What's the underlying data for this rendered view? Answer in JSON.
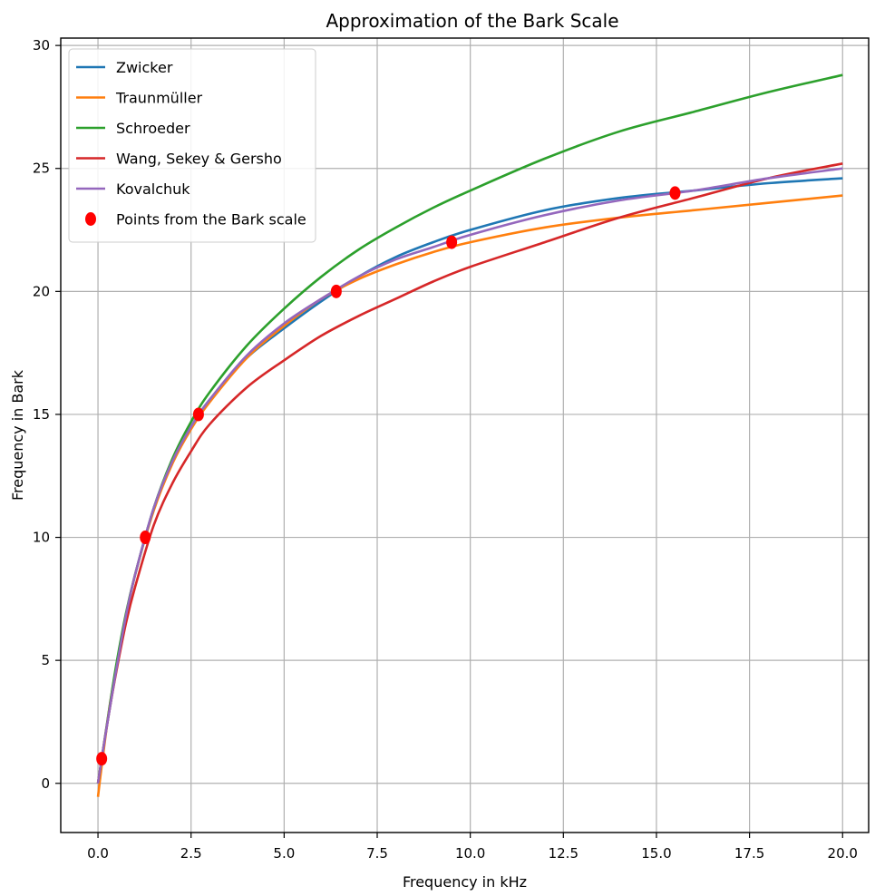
{
  "chart_data": {
    "type": "line",
    "title": "Approximation of the Bark Scale",
    "xlabel": "Frequency in kHz",
    "ylabel": "Frequency in Bark",
    "xlim": [
      -1.0,
      20.7
    ],
    "ylim": [
      -2.0,
      30.3
    ],
    "xticks": [
      0.0,
      2.5,
      5.0,
      7.5,
      10.0,
      12.5,
      15.0,
      17.5,
      20.0
    ],
    "xtick_labels": [
      "0.0",
      "2.5",
      "5.0",
      "7.5",
      "10.0",
      "12.5",
      "15.0",
      "17.5",
      "20.0"
    ],
    "yticks": [
      0,
      5,
      10,
      15,
      20,
      25,
      30
    ],
    "ytick_labels": [
      "0",
      "5",
      "10",
      "15",
      "20",
      "25",
      "30"
    ],
    "grid": true,
    "legend_position": "top-left",
    "series": [
      {
        "name": "Zwicker",
        "color": "#1f77b4",
        "kind": "line",
        "x": [
          0.0,
          0.1,
          0.3,
          0.5,
          0.75,
          1.0,
          1.5,
          2.0,
          2.5,
          3.0,
          4.0,
          5.0,
          6.0,
          7.0,
          8.0,
          9.0,
          10.0,
          12.0,
          14.0,
          16.0,
          18.0,
          20.0
        ],
        "y": [
          0.0,
          1.0,
          2.9,
          4.7,
          6.8,
          8.5,
          11.2,
          13.1,
          14.5,
          15.6,
          17.3,
          18.5,
          19.6,
          20.6,
          21.4,
          22.0,
          22.5,
          23.3,
          23.8,
          24.1,
          24.4,
          24.6
        ]
      },
      {
        "name": "Traunmüller",
        "color": "#ff7f0e",
        "kind": "line",
        "x": [
          0.0,
          0.1,
          0.3,
          0.5,
          0.75,
          1.0,
          1.5,
          2.0,
          2.5,
          3.0,
          4.0,
          5.0,
          6.0,
          7.0,
          8.0,
          9.0,
          10.0,
          12.0,
          14.0,
          16.0,
          18.0,
          20.0
        ],
        "y": [
          -0.55,
          0.7,
          3.0,
          4.8,
          6.8,
          8.5,
          11.1,
          13.0,
          14.4,
          15.5,
          17.3,
          18.6,
          19.7,
          20.5,
          21.1,
          21.6,
          22.0,
          22.6,
          23.0,
          23.3,
          23.6,
          23.9
        ]
      },
      {
        "name": "Schroeder",
        "color": "#2ca02c",
        "kind": "line",
        "x": [
          0.0,
          0.1,
          0.3,
          0.5,
          0.75,
          1.0,
          1.5,
          2.0,
          2.5,
          3.0,
          4.0,
          5.0,
          6.0,
          7.0,
          8.0,
          9.0,
          10.0,
          12.0,
          14.0,
          16.0,
          18.0,
          20.0
        ],
        "y": [
          0.0,
          1.0,
          3.0,
          4.9,
          6.9,
          8.5,
          11.2,
          13.2,
          14.7,
          15.9,
          17.8,
          19.3,
          20.6,
          21.7,
          22.6,
          23.4,
          24.1,
          25.4,
          26.5,
          27.3,
          28.1,
          28.8
        ]
      },
      {
        "name": "Wang, Sekey & Gersho",
        "color": "#d62728",
        "kind": "line",
        "x": [
          0.0,
          0.1,
          0.3,
          0.5,
          0.75,
          1.0,
          1.5,
          2.0,
          2.5,
          3.0,
          4.0,
          5.0,
          6.0,
          7.0,
          8.0,
          9.0,
          10.0,
          12.0,
          14.0,
          16.0,
          18.0,
          20.0
        ],
        "y": [
          0.0,
          1.0,
          2.9,
          4.6,
          6.5,
          8.0,
          10.5,
          12.2,
          13.5,
          14.6,
          16.1,
          17.2,
          18.2,
          19.0,
          19.7,
          20.4,
          21.0,
          22.0,
          23.0,
          23.8,
          24.6,
          25.2
        ]
      },
      {
        "name": "Kovalchuk",
        "color": "#9467bd",
        "kind": "line",
        "x": [
          0.0,
          0.1,
          0.3,
          0.5,
          0.75,
          1.0,
          1.5,
          2.0,
          2.5,
          3.0,
          4.0,
          5.0,
          6.0,
          7.0,
          8.0,
          9.0,
          10.0,
          12.0,
          14.0,
          16.0,
          18.0,
          20.0
        ],
        "y": [
          0.0,
          1.0,
          2.9,
          4.7,
          6.8,
          8.5,
          11.2,
          13.1,
          14.5,
          15.6,
          17.4,
          18.7,
          19.7,
          20.6,
          21.3,
          21.8,
          22.3,
          23.1,
          23.7,
          24.1,
          24.6,
          25.0
        ]
      },
      {
        "name": "Points from the Bark scale",
        "color": "#ff0000",
        "kind": "scatter",
        "x": [
          0.1,
          1.27,
          2.7,
          6.4,
          9.5,
          15.5
        ],
        "y": [
          1,
          10,
          15,
          20,
          22,
          24
        ]
      }
    ]
  }
}
